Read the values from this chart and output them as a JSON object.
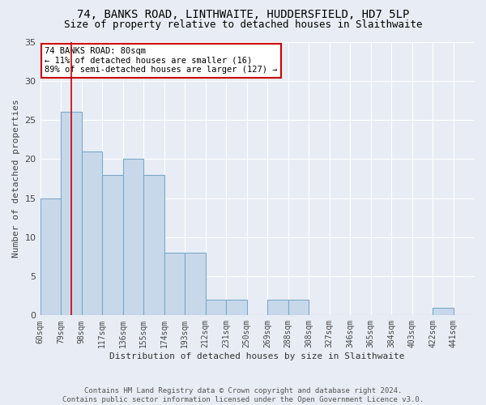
{
  "title": "74, BANKS ROAD, LINTHWAITE, HUDDERSFIELD, HD7 5LP",
  "subtitle": "Size of property relative to detached houses in Slaithwaite",
  "xlabel": "Distribution of detached houses by size in Slaithwaite",
  "ylabel": "Number of detached properties",
  "bin_labels": [
    "60sqm",
    "79sqm",
    "98sqm",
    "117sqm",
    "136sqm",
    "155sqm",
    "174sqm",
    "193sqm",
    "212sqm",
    "231sqm",
    "250sqm",
    "269sqm",
    "288sqm",
    "308sqm",
    "327sqm",
    "346sqm",
    "365sqm",
    "384sqm",
    "403sqm",
    "422sqm",
    "441sqm"
  ],
  "counts": [
    15,
    26,
    21,
    18,
    20,
    18,
    8,
    8,
    2,
    2,
    0,
    2,
    2,
    0,
    0,
    0,
    0,
    0,
    0,
    1,
    0
  ],
  "bar_color": "#c8d8eb",
  "bar_edge_color": "#7aaac8",
  "background_color": "#e8edf5",
  "grid_color": "#ffffff",
  "marker_bin_index": 1,
  "marker_color": "#cc0000",
  "annotation_text": "74 BANKS ROAD: 80sqm\n← 11% of detached houses are smaller (16)\n89% of semi-detached houses are larger (127) →",
  "annotation_box_color": "#ffffff",
  "annotation_box_edge": "#cc0000",
  "footer_text": "Contains HM Land Registry data © Crown copyright and database right 2024.\nContains public sector information licensed under the Open Government Licence v3.0.",
  "ylim": [
    0,
    35
  ],
  "title_fontsize": 10,
  "subtitle_fontsize": 9,
  "xlabel_fontsize": 8,
  "ylabel_fontsize": 8,
  "tick_fontsize": 7,
  "footer_fontsize": 6.5
}
